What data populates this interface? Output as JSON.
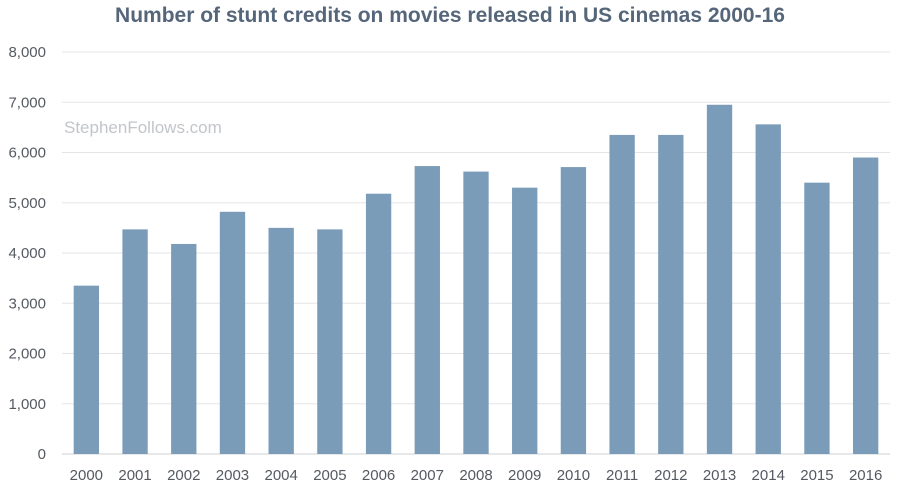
{
  "chart_data": {
    "type": "bar",
    "title": "Number of stunt credits on movies released in US cinemas 2000-16",
    "xlabel": "",
    "ylabel": "",
    "categories": [
      "2000",
      "2001",
      "2002",
      "2003",
      "2004",
      "2005",
      "2006",
      "2007",
      "2008",
      "2009",
      "2010",
      "2011",
      "2012",
      "2013",
      "2014",
      "2015",
      "2016"
    ],
    "values": [
      3350,
      4470,
      4180,
      4820,
      4500,
      4470,
      5180,
      5730,
      5620,
      5300,
      5710,
      6350,
      6350,
      6950,
      6560,
      5400,
      5900
    ],
    "ylim": [
      0,
      8000
    ],
    "yticks": [
      0,
      1000,
      2000,
      3000,
      4000,
      5000,
      6000,
      7000,
      8000
    ],
    "ytick_labels": [
      "0",
      "1,000",
      "2,000",
      "3,000",
      "4,000",
      "5,000",
      "6,000",
      "7,000",
      "8,000"
    ],
    "grid": true,
    "legend": "none",
    "bar_color": "#7b9cb8"
  },
  "watermark": "StephenFollows.com"
}
